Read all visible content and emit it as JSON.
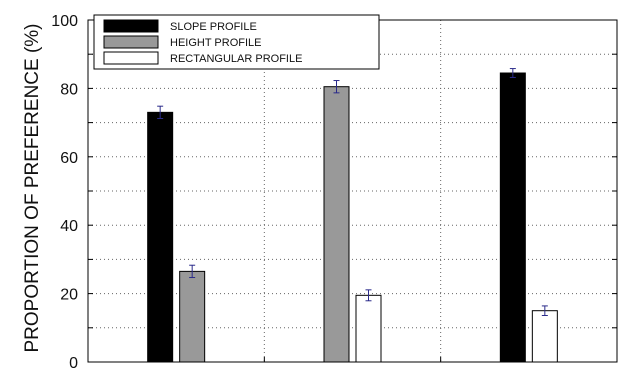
{
  "chart_data": {
    "type": "bar",
    "title": "",
    "xlabel": "",
    "ylabel": "PROPORTION OF PREFERENCE (%)",
    "ylim": [
      0,
      100
    ],
    "yticks": [
      "0",
      "20",
      "40",
      "60",
      "80",
      "100"
    ],
    "grid": true,
    "legend_position": "top-left",
    "groups": 3,
    "series": [
      {
        "name": "SLOPE PROFILE",
        "color": "#000000",
        "values": [
          73,
          null,
          84.5
        ],
        "errors": [
          1.8,
          null,
          1.3
        ]
      },
      {
        "name": "HEIGHT PROFILE",
        "color": "#999999",
        "values": [
          26.5,
          80.5,
          null
        ],
        "errors": [
          1.8,
          1.8,
          null
        ]
      },
      {
        "name": "RECTANGULAR PROFILE",
        "color": "#ffffff",
        "values": [
          null,
          19.5,
          15
        ],
        "errors": [
          null,
          1.6,
          1.4
        ]
      }
    ]
  }
}
